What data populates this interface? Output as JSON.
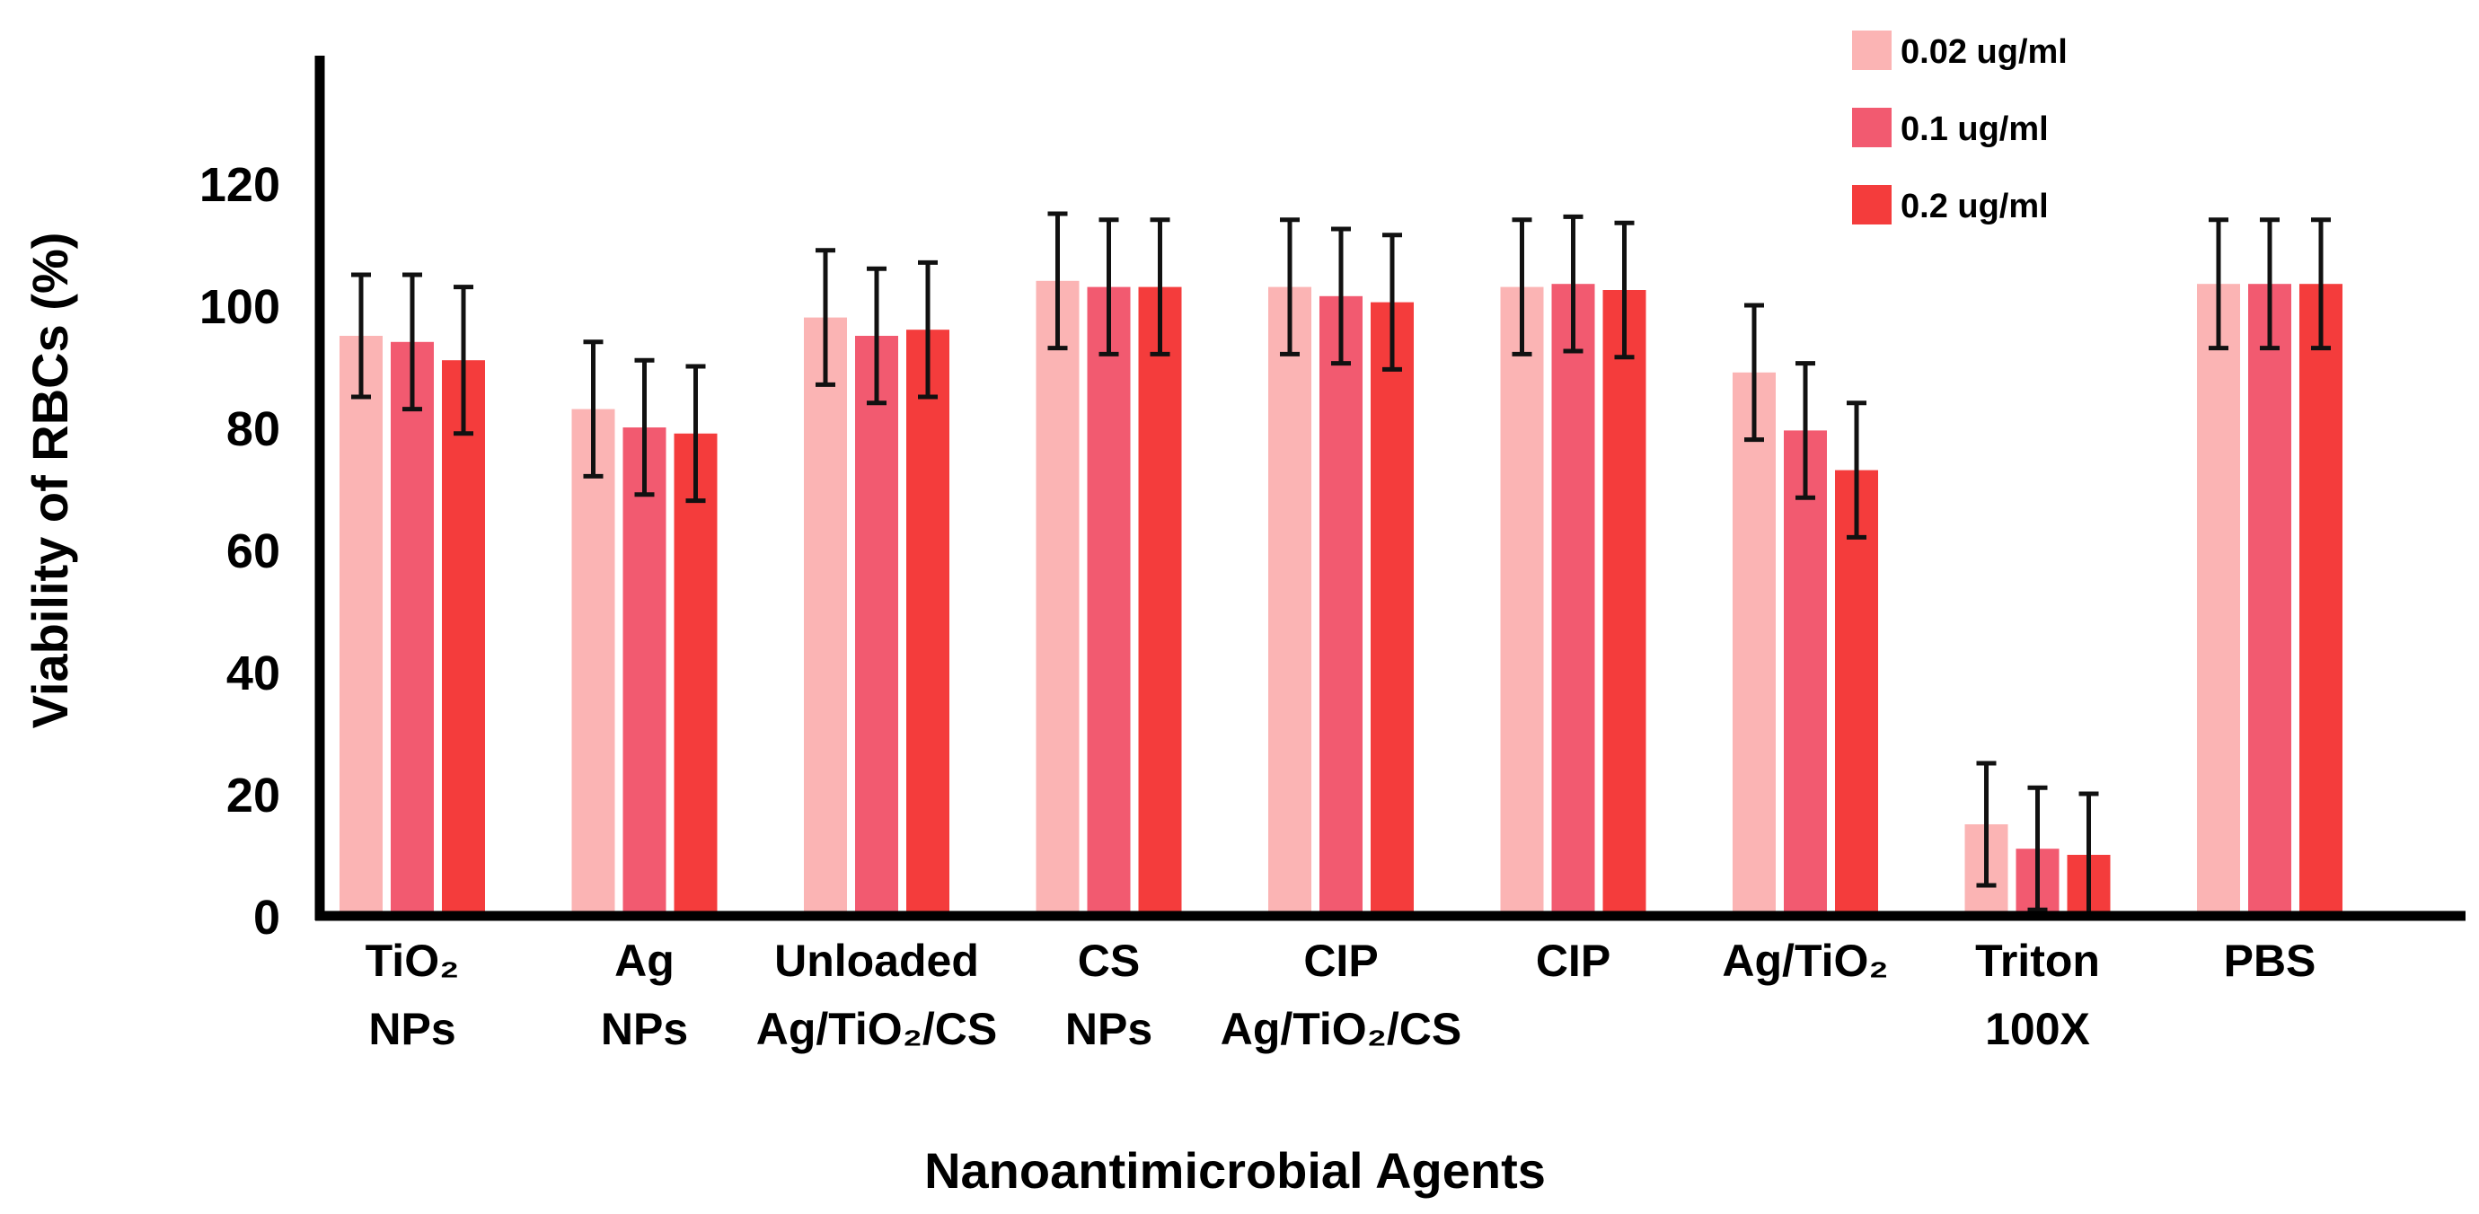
{
  "chart_data": {
    "type": "bar",
    "title": "",
    "xlabel": "Nanoantimicrobial Agents",
    "ylabel": "Viability of RBCs (%)",
    "ylim": [
      0,
      145
    ],
    "yticks": [
      0,
      20,
      40,
      60,
      80,
      100,
      120
    ],
    "categories": [
      {
        "line1": "TiO₂",
        "line2": "NPs"
      },
      {
        "line1": "Ag",
        "line2": "NPs"
      },
      {
        "line1": "Unloaded",
        "line2": "Ag/TiO₂/CS"
      },
      {
        "line1": "CS",
        "line2": "NPs"
      },
      {
        "line1": "CIP",
        "line2": "Ag/TiO₂/CS"
      },
      {
        "line1": "CIP",
        "line2": ""
      },
      {
        "line1": "Ag/TiO₂",
        "line2": ""
      },
      {
        "line1": "Triton",
        "line2": "100X"
      },
      {
        "line1": "PBS",
        "line2": ""
      }
    ],
    "series": [
      {
        "name": "0.02 ug/ml",
        "color": "#fbb4b4",
        "values": [
          95,
          83,
          98,
          104,
          103,
          103,
          89,
          15,
          103.5
        ],
        "errors": [
          10,
          11,
          11,
          11,
          11,
          11,
          11,
          10,
          10.5
        ]
      },
      {
        "name": "0.1 ug/ml",
        "color": "#f25a70",
        "values": [
          94,
          80,
          95,
          103,
          101.5,
          103.5,
          79.5,
          11,
          103.5
        ],
        "errors": [
          11,
          11,
          11,
          11,
          11,
          11,
          11,
          10,
          10.5
        ]
      },
      {
        "name": "0.2 ug/ml",
        "color": "#f43c3c",
        "values": [
          91,
          79,
          96,
          103,
          100.5,
          102.5,
          73,
          10,
          103.5
        ],
        "errors": [
          12,
          11,
          11,
          11,
          11,
          11,
          11,
          10,
          10.5
        ]
      }
    ],
    "legend_position": "top-right"
  }
}
